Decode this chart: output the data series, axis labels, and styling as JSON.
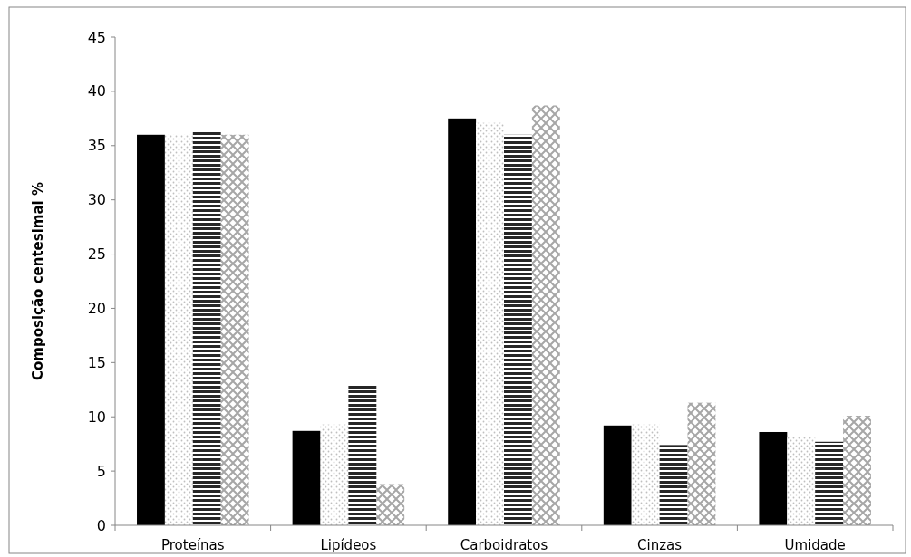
{
  "chart_data": {
    "type": "bar",
    "ylabel": "Composição centesimal  %",
    "categories": [
      "Proteínas",
      "Lipídeos",
      "Carboidratos",
      "Cinzas",
      "Umidade"
    ],
    "series": [
      {
        "color": "#000000",
        "values": [
          36,
          8.7,
          37.5,
          9.2,
          8.6
        ]
      },
      {
        "color": "#bfbfbf",
        "values": [
          36,
          9.3,
          37.1,
          9.3,
          8.1
        ]
      },
      {
        "color": "#262626",
        "values": [
          36.3,
          12.9,
          36,
          7.4,
          7.7
        ]
      },
      {
        "color": "#a6a6a6",
        "values": [
          36,
          3.8,
          38.7,
          11.3,
          10.1
        ]
      }
    ],
    "ylim": [
      0,
      45
    ],
    "yticks": [
      0,
      5,
      10,
      15,
      20,
      25,
      30,
      35,
      40,
      45
    ],
    "grid": false
  }
}
